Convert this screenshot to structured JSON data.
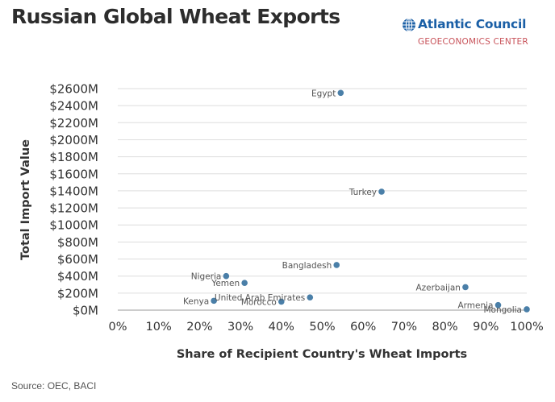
{
  "title": "Russian Global Wheat Exports",
  "logo": {
    "name": "Atlantic Council",
    "subtitle": "GEOECONOMICS CENTER",
    "icon": "globe-icon",
    "name_color": "#1a5fa6",
    "subtitle_color": "#c8535a"
  },
  "source": "Source: OEC, BACI",
  "chart_data": {
    "type": "scatter",
    "xlabel": "Share of Recipient Country's Wheat Imports",
    "ylabel": "Total Import Value",
    "xlim": [
      0,
      100
    ],
    "ylim": [
      0,
      2600
    ],
    "x_ticks": [
      "0%",
      "10%",
      "20%",
      "30%",
      "40%",
      "50%",
      "60%",
      "70%",
      "80%",
      "90%",
      "100%"
    ],
    "y_ticks": [
      "$0M",
      "$200M",
      "$400M",
      "$600M",
      "$800M",
      "$1000M",
      "$1200M",
      "$1400M",
      "$1600M",
      "$1800M",
      "$2000M",
      "$2200M",
      "$2400M",
      "$2600M"
    ],
    "grid": "horizontal",
    "marker_color": "#4a7fa8",
    "points": [
      {
        "label": "Egypt",
        "x": 54.5,
        "y": 2550
      },
      {
        "label": "Turkey",
        "x": 64.5,
        "y": 1390
      },
      {
        "label": "Bangladesh",
        "x": 53.5,
        "y": 530
      },
      {
        "label": "Nigeria",
        "x": 26.5,
        "y": 400
      },
      {
        "label": "Yemen",
        "x": 31,
        "y": 320
      },
      {
        "label": "United Arab Emirates",
        "x": 47,
        "y": 150
      },
      {
        "label": "Kenya",
        "x": 23.5,
        "y": 110
      },
      {
        "label": "Morocco",
        "x": 40,
        "y": 100
      },
      {
        "label": "Azerbaijan",
        "x": 85,
        "y": 270
      },
      {
        "label": "Armenia",
        "x": 93,
        "y": 60
      },
      {
        "label": "Mongolia",
        "x": 100,
        "y": 10
      }
    ]
  }
}
